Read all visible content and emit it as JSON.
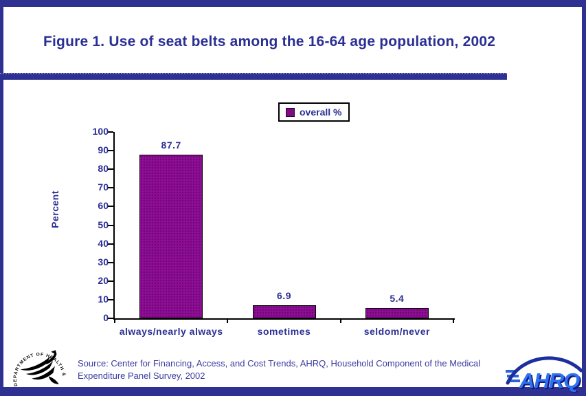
{
  "window": {
    "frame_color": "#2E3192",
    "background": "#FFFFFF"
  },
  "title": {
    "text": "Figure 1. Use of seat belts among the 16-64 age population, 2002"
  },
  "legend": {
    "label": "overall %",
    "swatch_color": "#7D0C80"
  },
  "chart_data": {
    "type": "bar",
    "title": "Figure 1. Use of seat belts among the 16-64 age population, 2002",
    "categories": [
      "always/nearly always",
      "sometimes",
      "seldom/never"
    ],
    "series": [
      {
        "name": "overall %",
        "values": [
          87.7,
          6.9,
          5.4
        ]
      }
    ],
    "value_labels": [
      "87.7",
      "6.9",
      "5.4"
    ],
    "xlabel": "",
    "ylabel": "Percent",
    "ylim": [
      0,
      100
    ],
    "ytick_step": 10,
    "grid": false,
    "legend_position": "top-center",
    "bar_color": "#8E0D92"
  },
  "source": {
    "line1": "Source: Center for Financing, Access, and Cost Trends, AHRQ, Household Component of the Medical",
    "line2": "Expenditure Panel Survey, 2002"
  },
  "logos": {
    "hhs": {
      "ring_text": "DEPARTMENT OF HEALTH & HUMAN SERVICES • USA"
    },
    "ahrq": {
      "text": "AHRQ"
    }
  }
}
